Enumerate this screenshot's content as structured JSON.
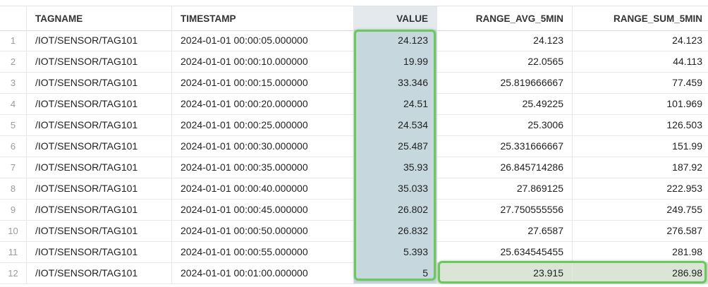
{
  "columns": [
    "",
    "TAGNAME",
    "TIMESTAMP",
    "VALUE",
    "RANGE_AVG_5MIN",
    "RANGE_SUM_5MIN"
  ],
  "rows": [
    {
      "n": "1",
      "tag": "/IOT/SENSOR/TAG101",
      "ts": "2024-01-01 00:00:05.000000",
      "value": "24.123",
      "avg": "24.123",
      "sum": "24.123"
    },
    {
      "n": "2",
      "tag": "/IOT/SENSOR/TAG101",
      "ts": "2024-01-01 00:00:10.000000",
      "value": "19.99",
      "avg": "22.0565",
      "sum": "44.113"
    },
    {
      "n": "3",
      "tag": "/IOT/SENSOR/TAG101",
      "ts": "2024-01-01 00:00:15.000000",
      "value": "33.346",
      "avg": "25.819666667",
      "sum": "77.459"
    },
    {
      "n": "4",
      "tag": "/IOT/SENSOR/TAG101",
      "ts": "2024-01-01 00:00:20.000000",
      "value": "24.51",
      "avg": "25.49225",
      "sum": "101.969"
    },
    {
      "n": "5",
      "tag": "/IOT/SENSOR/TAG101",
      "ts": "2024-01-01 00:00:25.000000",
      "value": "24.534",
      "avg": "25.3006",
      "sum": "126.503"
    },
    {
      "n": "6",
      "tag": "/IOT/SENSOR/TAG101",
      "ts": "2024-01-01 00:00:30.000000",
      "value": "25.487",
      "avg": "25.331666667",
      "sum": "151.99"
    },
    {
      "n": "7",
      "tag": "/IOT/SENSOR/TAG101",
      "ts": "2024-01-01 00:00:35.000000",
      "value": "35.93",
      "avg": "26.845714286",
      "sum": "187.92"
    },
    {
      "n": "8",
      "tag": "/IOT/SENSOR/TAG101",
      "ts": "2024-01-01 00:00:40.000000",
      "value": "35.033",
      "avg": "27.869125",
      "sum": "222.953"
    },
    {
      "n": "9",
      "tag": "/IOT/SENSOR/TAG101",
      "ts": "2024-01-01 00:00:45.000000",
      "value": "26.802",
      "avg": "27.750555556",
      "sum": "249.755"
    },
    {
      "n": "10",
      "tag": "/IOT/SENSOR/TAG101",
      "ts": "2024-01-01 00:00:50.000000",
      "value": "26.832",
      "avg": "27.6587",
      "sum": "276.587"
    },
    {
      "n": "11",
      "tag": "/IOT/SENSOR/TAG101",
      "ts": "2024-01-01 00:00:55.000000",
      "value": "5.393",
      "avg": "25.634545455",
      "sum": "281.98"
    },
    {
      "n": "12",
      "tag": "/IOT/SENSOR/TAG101",
      "ts": "2024-01-01 00:01:00.000000",
      "value": "5",
      "avg": "23.915",
      "sum": "286.98"
    }
  ],
  "colors": {
    "highlight_border": "#6cc761",
    "value_column_fill": "#c6d7de",
    "last_row_fill": "#dbe5d6"
  }
}
